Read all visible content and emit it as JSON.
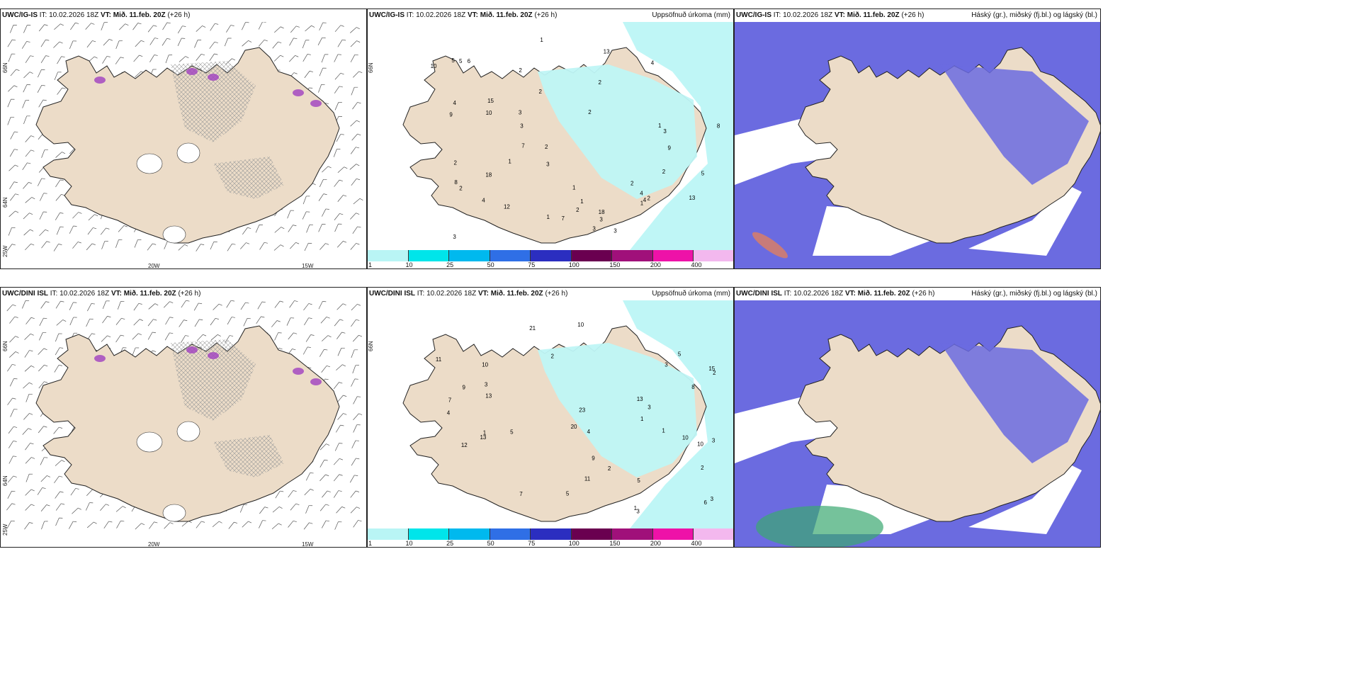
{
  "rows": [
    {
      "panels": [
        {
          "model": "UWC/IG-IS",
          "it_label": "IT:",
          "it_value": "10.02.2026 18Z",
          "vt_label": "VT:",
          "vt_value": "Mið. 11.feb. 20Z",
          "lead": "(+26 h)",
          "right_title": "",
          "kind": "wind",
          "lon_ticks": [
            "20W",
            "15W"
          ],
          "lat_ticks": [
            "66N",
            "64N",
            "25W"
          ]
        },
        {
          "model": "UWC/IG-IS",
          "it_label": "IT:",
          "it_value": "10.02.2026 18Z",
          "vt_label": "VT:",
          "vt_value": "Mið. 11.feb. 20Z",
          "lead": "(+26 h)",
          "right_title": "Uppsöfnuð úrkoma (mm)",
          "kind": "precip",
          "lon_ticks": [],
          "lat_ticks": [
            "66N"
          ]
        },
        {
          "model": "UWC/IG-IS",
          "it_label": "IT:",
          "it_value": "10.02.2026 18Z",
          "vt_label": "VT:",
          "vt_value": "Mið. 11.feb. 20Z",
          "lead": "(+26 h)",
          "right_title": "Háský (gr.), miðský (fj.bl.) og lágský (bl.)",
          "kind": "cloud",
          "lon_ticks": [],
          "lat_ticks": []
        }
      ]
    },
    {
      "panels": [
        {
          "model": "UWC/DINI ISL",
          "it_label": "IT:",
          "it_value": "10.02.2026 18Z",
          "vt_label": "VT:",
          "vt_value": "Mið. 11.feb. 20Z",
          "lead": "(+26 h)",
          "right_title": "",
          "kind": "wind",
          "lon_ticks": [
            "20W",
            "15W"
          ],
          "lat_ticks": [
            "66N",
            "64N",
            "25W"
          ]
        },
        {
          "model": "UWC/DINI ISL",
          "it_label": "IT:",
          "it_value": "10.02.2026 18Z",
          "vt_label": "VT:",
          "vt_value": "Mið. 11.feb. 20Z",
          "lead": "(+26 h)",
          "right_title": "Uppsöfnuð úrkoma (mm)",
          "kind": "precip",
          "lon_ticks": [],
          "lat_ticks": [
            "66N"
          ]
        },
        {
          "model": "UWC/DINI ISL",
          "it_label": "IT:",
          "it_value": "10.02.2026 18Z",
          "vt_label": "VT:",
          "vt_value": "Mið. 11.feb. 20Z",
          "lead": "(+26 h)",
          "right_title": "Háský (gr.), miðský (fj.bl.) og lágský (bl.)",
          "kind": "cloud",
          "lon_ticks": [],
          "lat_ticks": []
        }
      ]
    }
  ],
  "precip_colorbar": {
    "ticks": [
      "1",
      "10",
      "25",
      "50",
      "75",
      "100",
      "150",
      "200",
      "400"
    ],
    "colors": [
      "#b9f5f5",
      "#00e5ea",
      "#00b9ee",
      "#2f6fe6",
      "#2b2ec0",
      "#6a0050",
      "#a0107a",
      "#ee12a8",
      "#f3b8ee"
    ]
  },
  "precip_labels_row1": [
    "1",
    "1",
    "2",
    "10",
    "8",
    "2",
    "2",
    "2",
    "1",
    "15",
    "18",
    "13",
    "7",
    "3",
    "4",
    "3",
    "4",
    "4",
    "5",
    "3",
    "6",
    "9",
    "10",
    "3",
    "18",
    "12",
    "13",
    "3",
    "2",
    "3",
    "5",
    "2",
    "2",
    "1",
    "1",
    "2",
    "5",
    "2",
    "2",
    "1",
    "3",
    "4",
    "7",
    "8",
    "9",
    "2",
    "4",
    "3",
    "1"
  ],
  "precip_labels_row2": [
    "2",
    "10",
    "5",
    "8",
    "2",
    "1",
    "2",
    "1",
    "4",
    "5",
    "10",
    "13",
    "3",
    "3",
    "11",
    "9",
    "12",
    "21",
    "6",
    "7",
    "20",
    "23",
    "10",
    "5",
    "3",
    "3",
    "4",
    "7",
    "9",
    "13",
    "13",
    "11",
    "15",
    "10",
    "1",
    "5",
    "2",
    "3",
    "1",
    "3"
  ],
  "colors": {
    "land": "#ecdcc8",
    "coast": "#222222",
    "precip_light": "#bff6f6",
    "cloud_high": "#6b6be0",
    "cloud_mid": "#8aa0f0",
    "cloud_low": "#5aa8f5",
    "wind_hatch": "#9a9a9a",
    "snow_purple": "#a040c0"
  }
}
